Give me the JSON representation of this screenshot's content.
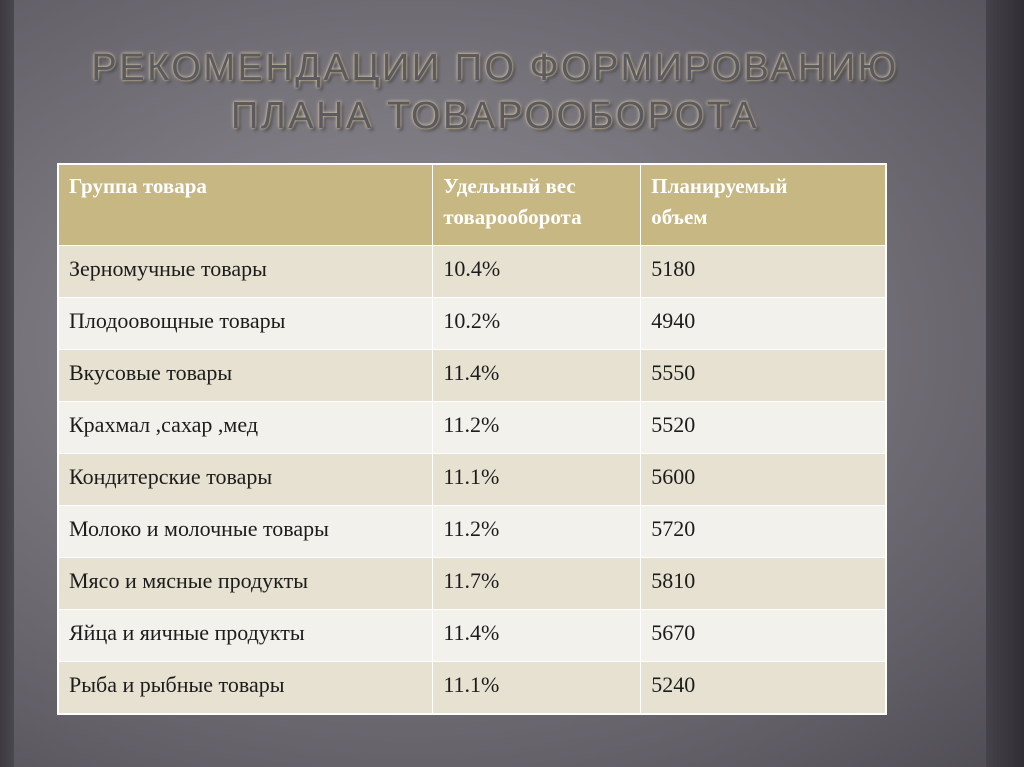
{
  "title": {
    "line1": "РЕКОМЕНДАЦИИ ПО ФОРМИРОВАНИЮ",
    "line2": "ПЛАНА ТОВАРООБОРОТА"
  },
  "table": {
    "headers": [
      [
        "Группа товара"
      ],
      [
        "Удельный вес",
        "товарооборота"
      ],
      [
        "Планируемый",
        "объем"
      ]
    ],
    "rows": [
      [
        "Зерномучные товары",
        "10.4%",
        "5180"
      ],
      [
        "Плодоовощные товары",
        "10.2%",
        "4940"
      ],
      [
        "Вкусовые товары",
        "11.4%",
        "5550"
      ],
      [
        "Крахмал ,сахар ,мед",
        "11.2%",
        "5520"
      ],
      [
        "Кондитерские товары",
        "11.1%",
        "5600"
      ],
      [
        "Молоко и молочные товары",
        "11.2%",
        "5720"
      ],
      [
        "Мясо и мясные продукты",
        "11.7%",
        "5810"
      ],
      [
        "Яйца и яичные продукты",
        "11.4%",
        "5670"
      ],
      [
        "Рыба и рыбные товары",
        "11.1%",
        "5240"
      ]
    ]
  },
  "colors": {
    "header_bg": "#c6b783",
    "row_odd_bg": "#e6e1d1",
    "row_even_bg": "#f3f1eb",
    "slide_bg": "#7d7a82"
  }
}
